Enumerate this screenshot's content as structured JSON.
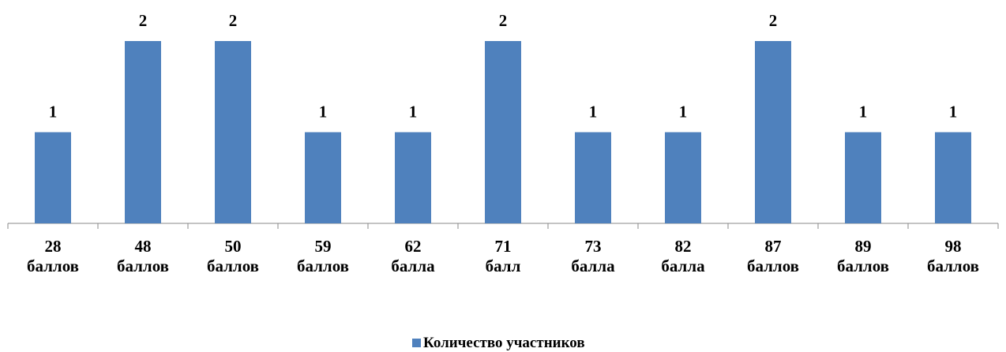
{
  "chart_data": {
    "type": "bar",
    "categories": [
      "28 баллов",
      "48 баллов",
      "50 баллов",
      "59 баллов",
      "62 балла",
      "71 балл",
      "73 балла",
      "82 балла",
      "87 баллов",
      "89 баллов",
      "98 баллов"
    ],
    "series": [
      {
        "name": "Количество участников",
        "color": "#4f81bd",
        "values": [
          1,
          2,
          2,
          1,
          1,
          2,
          1,
          1,
          2,
          1,
          1
        ]
      }
    ],
    "ylim": [
      0,
      2
    ],
    "legend": "bottom"
  }
}
